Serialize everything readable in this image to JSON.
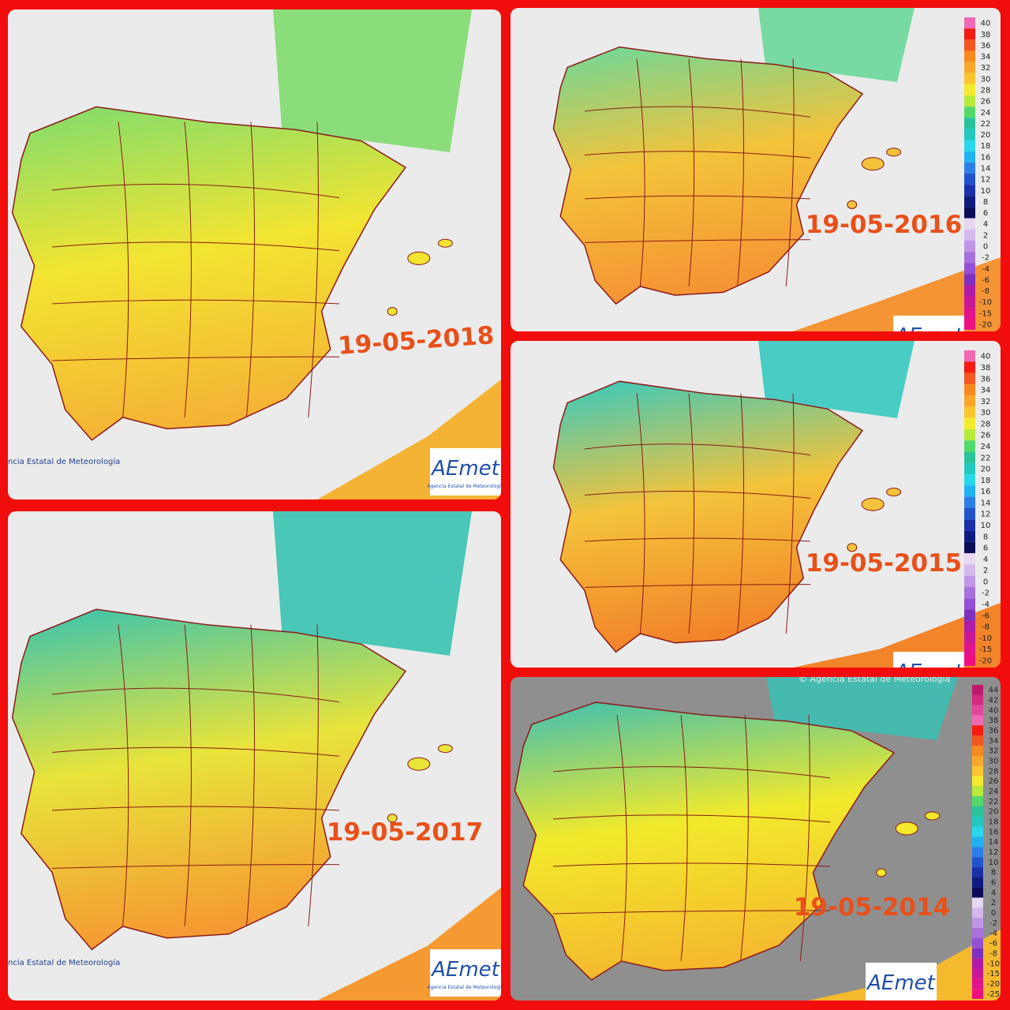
{
  "panels": [
    {
      "date": "19-05-2018",
      "credit": "ncia Estatal de Meteorología",
      "logo": "AEmet",
      "logo_caption": "Agencia Estatal de Meteorología"
    },
    {
      "date": "19-05-2016",
      "logo": "AEmet",
      "legend": [
        "40",
        "38",
        "36",
        "34",
        "32",
        "30",
        "28",
        "26",
        "24",
        "22",
        "20",
        "18",
        "16",
        "14",
        "12",
        "10",
        "8",
        "6",
        "4",
        "2",
        "0",
        "-2",
        "-4",
        "-6",
        "-8",
        "-10",
        "-15",
        "-20"
      ]
    },
    {
      "date": "19-05-2015",
      "logo": "AEmet",
      "legend": [
        "40",
        "38",
        "36",
        "34",
        "32",
        "30",
        "28",
        "26",
        "24",
        "22",
        "20",
        "18",
        "16",
        "14",
        "12",
        "10",
        "8",
        "6",
        "4",
        "2",
        "0",
        "-2",
        "-4",
        "-6",
        "-8",
        "-10",
        "-15",
        "-20"
      ]
    },
    {
      "date": "19-05-2017",
      "credit": "ncia Estatal de Meteorología",
      "logo": "AEmet",
      "logo_caption": "Agencia Estatal de Meteorología"
    },
    {
      "date": "19-05-2014",
      "credit": "© Agencia Estatal de Meteorología",
      "logo": "AEmet",
      "legend": [
        "44",
        "42",
        "40",
        "38",
        "36",
        "34",
        "32",
        "30",
        "28",
        "26",
        "24",
        "22",
        "20",
        "18",
        "16",
        "14",
        "12",
        "10",
        "8",
        "6",
        "4",
        "2",
        "0",
        "-2",
        "-4",
        "-6",
        "-8",
        "-10",
        "-15",
        "-20",
        "-25"
      ]
    }
  ]
}
